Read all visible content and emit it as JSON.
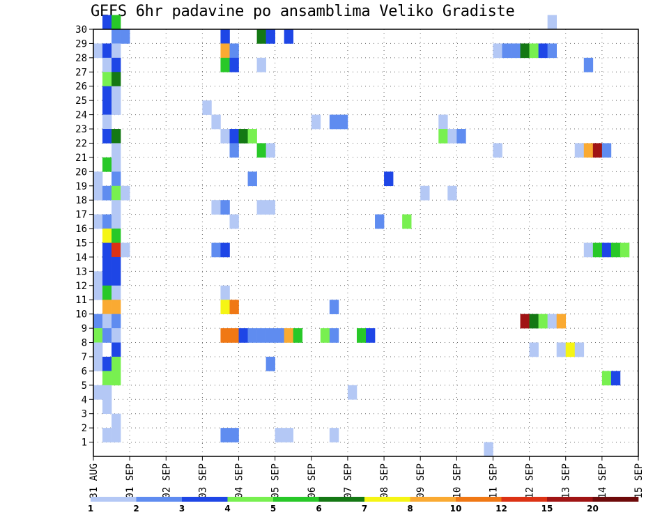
{
  "chart_data": {
    "type": "heatmap",
    "title": "GEFS 6hr padavine po ansamblima Veliko Gradiste",
    "xlabel": "",
    "ylabel": "",
    "x_ticks": [
      "31 AUG",
      "01 SEP",
      "02 SEP",
      "03 SEP",
      "04 SEP",
      "05 SEP",
      "06 SEP",
      "07 SEP",
      "08 SEP",
      "09 SEP",
      "10 SEP",
      "11 SEP",
      "12 SEP",
      "13 SEP",
      "14 SEP",
      "15 SEP"
    ],
    "y_ticks": [
      "1",
      "2",
      "3",
      "4",
      "5",
      "6",
      "7",
      "8",
      "9",
      "10",
      "11",
      "12",
      "13",
      "14",
      "15",
      "16",
      "17",
      "18",
      "19",
      "20",
      "21",
      "22",
      "23",
      "24",
      "25",
      "26",
      "27",
      "28",
      "29",
      "30"
    ],
    "y_range": [
      0,
      30
    ],
    "x_steps": 60,
    "grid": true,
    "legend": {
      "placement": "bottom",
      "levels": [
        "1",
        "2",
        "3",
        "4",
        "5",
        "6",
        "7",
        "8",
        "10",
        "12",
        "15",
        "20"
      ],
      "colors": [
        "#b4c8f5",
        "#5f8cf0",
        "#1e46e6",
        "#78f050",
        "#28c828",
        "#147814",
        "#f5f514",
        "#faaa32",
        "#f07814",
        "#dc3214",
        "#a01414",
        "#6e0a0a"
      ]
    },
    "cells": [
      [
        1,
        30,
        2
      ],
      [
        2,
        30,
        4
      ],
      [
        50,
        30,
        0
      ],
      [
        2,
        29,
        1
      ],
      [
        3,
        29,
        1
      ],
      [
        14,
        29,
        2
      ],
      [
        18,
        29,
        5
      ],
      [
        19,
        29,
        2
      ],
      [
        21,
        29,
        2
      ],
      [
        0,
        28,
        0
      ],
      [
        1,
        28,
        2
      ],
      [
        2,
        28,
        0
      ],
      [
        14,
        28,
        7
      ],
      [
        15,
        28,
        1
      ],
      [
        44,
        28,
        0
      ],
      [
        45,
        28,
        1
      ],
      [
        46,
        28,
        1
      ],
      [
        47,
        28,
        5
      ],
      [
        48,
        28,
        3
      ],
      [
        49,
        28,
        2
      ],
      [
        50,
        28,
        1
      ],
      [
        1,
        27,
        0
      ],
      [
        2,
        27,
        2
      ],
      [
        14,
        27,
        4
      ],
      [
        15,
        27,
        2
      ],
      [
        18,
        27,
        0
      ],
      [
        54,
        27,
        1
      ],
      [
        1,
        26,
        3
      ],
      [
        2,
        26,
        5
      ],
      [
        1,
        25,
        2
      ],
      [
        2,
        25,
        0
      ],
      [
        1,
        24,
        2
      ],
      [
        2,
        24,
        0
      ],
      [
        12,
        24,
        0
      ],
      [
        1,
        23,
        0
      ],
      [
        13,
        23,
        0
      ],
      [
        24,
        23,
        0
      ],
      [
        26,
        23,
        1
      ],
      [
        27,
        23,
        1
      ],
      [
        38,
        23,
        0
      ],
      [
        1,
        22,
        2
      ],
      [
        2,
        22,
        5
      ],
      [
        14,
        22,
        0
      ],
      [
        15,
        22,
        2
      ],
      [
        16,
        22,
        5
      ],
      [
        17,
        22,
        3
      ],
      [
        38,
        22,
        3
      ],
      [
        39,
        22,
        0
      ],
      [
        40,
        22,
        1
      ],
      [
        2,
        21,
        0
      ],
      [
        15,
        21,
        1
      ],
      [
        18,
        21,
        4
      ],
      [
        19,
        21,
        0
      ],
      [
        44,
        21,
        0
      ],
      [
        53,
        21,
        0
      ],
      [
        54,
        21,
        7
      ],
      [
        55,
        21,
        10
      ],
      [
        56,
        21,
        1
      ],
      [
        1,
        20,
        4
      ],
      [
        2,
        20,
        0
      ],
      [
        0,
        19,
        0
      ],
      [
        2,
        19,
        1
      ],
      [
        17,
        19,
        1
      ],
      [
        32,
        19,
        2
      ],
      [
        0,
        18,
        0
      ],
      [
        1,
        18,
        1
      ],
      [
        2,
        18,
        3
      ],
      [
        3,
        18,
        0
      ],
      [
        36,
        18,
        0
      ],
      [
        39,
        18,
        0
      ],
      [
        2,
        17,
        0
      ],
      [
        13,
        17,
        0
      ],
      [
        14,
        17,
        1
      ],
      [
        18,
        17,
        0
      ],
      [
        19,
        17,
        0
      ],
      [
        0,
        16,
        0
      ],
      [
        1,
        16,
        1
      ],
      [
        2,
        16,
        0
      ],
      [
        15,
        16,
        0
      ],
      [
        31,
        16,
        1
      ],
      [
        34,
        16,
        3
      ],
      [
        1,
        15,
        6
      ],
      [
        2,
        15,
        4
      ],
      [
        1,
        14,
        2
      ],
      [
        2,
        14,
        9
      ],
      [
        3,
        14,
        0
      ],
      [
        13,
        14,
        1
      ],
      [
        14,
        14,
        2
      ],
      [
        54,
        14,
        0
      ],
      [
        55,
        14,
        4
      ],
      [
        56,
        14,
        2
      ],
      [
        57,
        14,
        4
      ],
      [
        58,
        14,
        3
      ],
      [
        1,
        13,
        2
      ],
      [
        2,
        13,
        2
      ],
      [
        0,
        12,
        0
      ],
      [
        1,
        12,
        2
      ],
      [
        2,
        12,
        2
      ],
      [
        0,
        11,
        0
      ],
      [
        1,
        11,
        4
      ],
      [
        2,
        11,
        0
      ],
      [
        14,
        11,
        0
      ],
      [
        1,
        10,
        7
      ],
      [
        2,
        10,
        7
      ],
      [
        14,
        10,
        6
      ],
      [
        15,
        10,
        8
      ],
      [
        26,
        10,
        1
      ],
      [
        0,
        9,
        1
      ],
      [
        1,
        9,
        0
      ],
      [
        2,
        9,
        1
      ],
      [
        47,
        9,
        10
      ],
      [
        48,
        9,
        5
      ],
      [
        49,
        9,
        3
      ],
      [
        50,
        9,
        0
      ],
      [
        51,
        9,
        7
      ],
      [
        0,
        8,
        3
      ],
      [
        1,
        8,
        1
      ],
      [
        2,
        8,
        0
      ],
      [
        14,
        8,
        8
      ],
      [
        15,
        8,
        8
      ],
      [
        16,
        8,
        2
      ],
      [
        17,
        8,
        1
      ],
      [
        18,
        8,
        1
      ],
      [
        19,
        8,
        1
      ],
      [
        20,
        8,
        1
      ],
      [
        21,
        8,
        7
      ],
      [
        22,
        8,
        4
      ],
      [
        25,
        8,
        3
      ],
      [
        26,
        8,
        1
      ],
      [
        29,
        8,
        4
      ],
      [
        30,
        8,
        2
      ],
      [
        0,
        7,
        0
      ],
      [
        2,
        7,
        2
      ],
      [
        48,
        7,
        0
      ],
      [
        51,
        7,
        0
      ],
      [
        52,
        7,
        6
      ],
      [
        53,
        7,
        0
      ],
      [
        0,
        6,
        0
      ],
      [
        1,
        6,
        2
      ],
      [
        2,
        6,
        3
      ],
      [
        19,
        6,
        1
      ],
      [
        1,
        5,
        3
      ],
      [
        2,
        5,
        3
      ],
      [
        56,
        5,
        3
      ],
      [
        57,
        5,
        2
      ],
      [
        0,
        4,
        0
      ],
      [
        1,
        4,
        0
      ],
      [
        28,
        4,
        0
      ],
      [
        1,
        3,
        0
      ],
      [
        2,
        2,
        0
      ],
      [
        1,
        1,
        0
      ],
      [
        2,
        1,
        0
      ],
      [
        14,
        1,
        1
      ],
      [
        15,
        1,
        1
      ],
      [
        20,
        1,
        0
      ],
      [
        21,
        1,
        0
      ],
      [
        26,
        1,
        0
      ],
      [
        43,
        0,
        0
      ]
    ]
  }
}
